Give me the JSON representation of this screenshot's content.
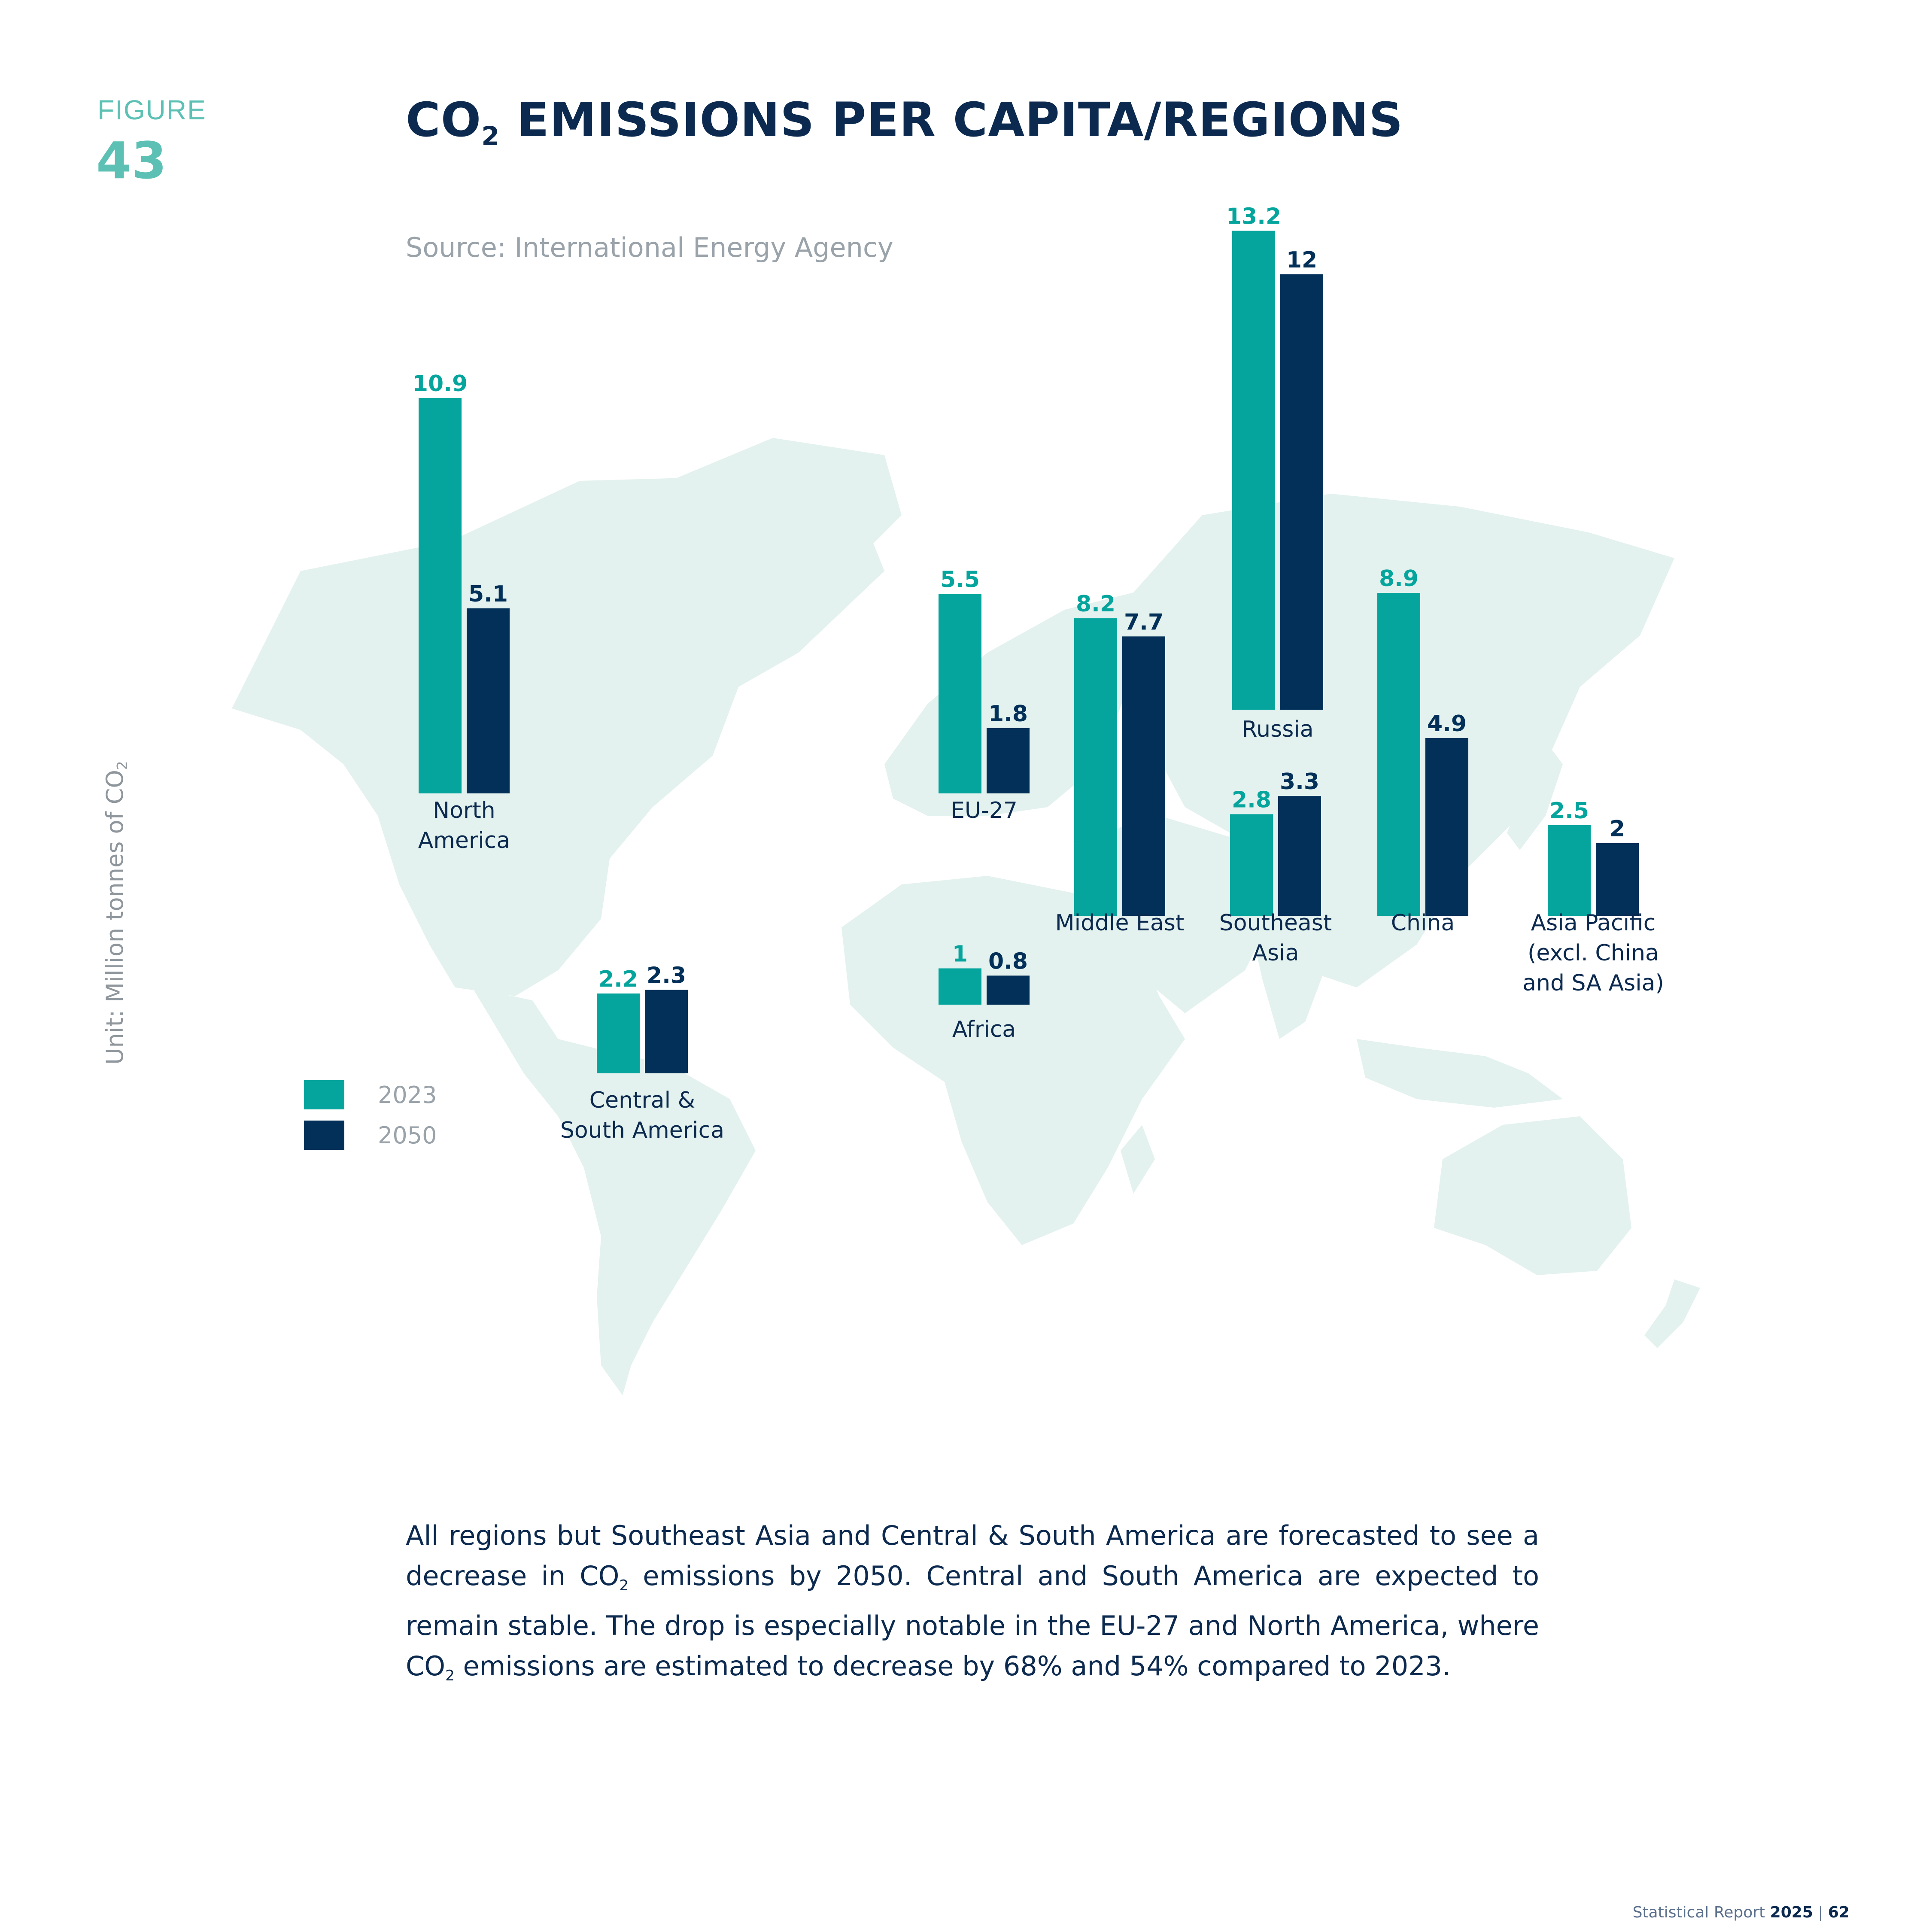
{
  "figure": {
    "label": "FIGURE",
    "number": "43"
  },
  "title": {
    "main": "CO",
    "sub": "2",
    "rest": " EMISSIONS PER CAPITA/REGIONS"
  },
  "source": "Source: International Energy Agency",
  "unit": {
    "main": "Unit: Million tonnes of CO",
    "sub": "2"
  },
  "legend": [
    {
      "label": "2023",
      "color": "#05a59d"
    },
    {
      "label": "2050",
      "color": "#023059"
    }
  ],
  "chart_data": {
    "type": "bar",
    "title": "CO2 EMISSIONS PER CAPITA/REGIONS",
    "ylabel": "Unit: Million tonnes of CO2",
    "legend_position": "bottom-left",
    "series_names": [
      "2023",
      "2050"
    ],
    "regions": [
      {
        "name": [
          "North",
          "America"
        ],
        "values": [
          10.9,
          5.1
        ]
      },
      {
        "name": [
          "Central &",
          "South America"
        ],
        "values": [
          2.2,
          2.3
        ]
      },
      {
        "name": [
          "EU-27"
        ],
        "values": [
          5.5,
          1.8
        ]
      },
      {
        "name": [
          "Africa"
        ],
        "values": [
          1,
          0.8
        ]
      },
      {
        "name": [
          "Middle East"
        ],
        "values": [
          8.2,
          7.7
        ]
      },
      {
        "name": [
          "Russia"
        ],
        "values": [
          13.2,
          12
        ]
      },
      {
        "name": [
          "Southeast",
          "Asia"
        ],
        "values": [
          2.8,
          3.3
        ]
      },
      {
        "name": [
          "China"
        ],
        "values": [
          8.9,
          4.9
        ]
      },
      {
        "name": [
          "Asia Pacific",
          "(excl. China",
          "and SA Asia)"
        ],
        "values": [
          2.5,
          2
        ]
      }
    ]
  },
  "paragraph": {
    "p1": "All regions but Southeast Asia and Central & South America are forecasted to see a decrease in CO",
    "s1": "2",
    "p2": " emissions by 2050. Central and South America are expected to remain stable. The drop is especially notable in the EU-27 and North America, where CO",
    "s2": "2",
    "p3": " emissions are estimated to decrease by 68% and 54% compared to 2023."
  },
  "footer": {
    "text": "Statistical Report ",
    "year": "2025",
    "sep": " | ",
    "page": "62"
  }
}
